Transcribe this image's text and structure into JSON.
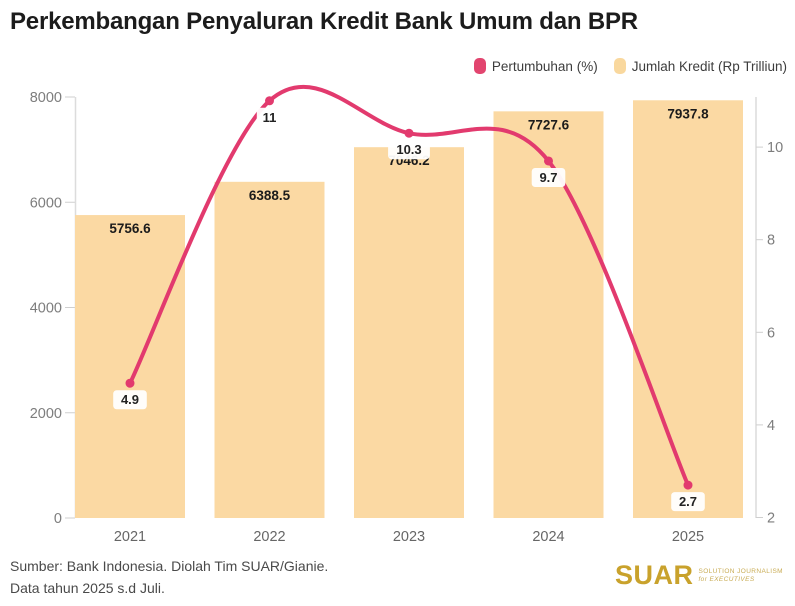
{
  "header": {
    "title": "Perkembangan Penyaluran Kredit Bank Umum dan BPR"
  },
  "legend": {
    "items": [
      {
        "label": "Pertumbuhan (%)",
        "color": "#e2456f"
      },
      {
        "label": "Jumlah Kredit (Rp Trilliun)",
        "color": "#f9d89e"
      }
    ]
  },
  "chart_data": {
    "type": "combo",
    "title": "Perkembangan Penyaluran Kredit Bank Umum dan BPR",
    "categories": [
      "2021",
      "2022",
      "2023",
      "2024",
      "2025"
    ],
    "series": [
      {
        "name": "Jumlah Kredit (Rp Trilliun)",
        "type": "bar",
        "axis": "left",
        "values": [
          5756.6,
          6388.5,
          7046.2,
          7727.6,
          7937.8
        ],
        "labels": [
          "5756.6",
          "6388.5",
          "7046.2",
          "7727.6",
          "7937.8"
        ],
        "color": "#fbd9a3"
      },
      {
        "name": "Pertumbuhan (%)",
        "type": "line",
        "axis": "right",
        "values": [
          4.9,
          11,
          10.3,
          9.7,
          2.7
        ],
        "labels": [
          "4.9",
          "11",
          "10.3",
          "9.7",
          "2.7"
        ],
        "color": "#e23a6e"
      }
    ],
    "y_axis_left": {
      "ticks": [
        0,
        2000,
        4000,
        6000,
        8000
      ],
      "range": [
        0,
        8000
      ]
    },
    "y_axis_right": {
      "ticks": [
        2,
        4,
        6,
        8,
        10
      ],
      "range": [
        2,
        11.1
      ]
    },
    "grid": false,
    "legend_position": "top-right",
    "axis_color": "#dcdcdc",
    "tick_color": "#cfcfcf"
  },
  "footer": {
    "source_line1": "Sumber: Bank Indonesia. Diolah Tim SUAR/Gianie.",
    "source_line2": "Data tahun 2025 s.d Juli."
  },
  "logo": {
    "name": "SUAR",
    "tagline_line1": "SOLUTION JOURNALISM",
    "tagline_line2": "for EXECUTIVES",
    "color": "#c9a22c",
    "tagline_color": "#c9ac55"
  }
}
